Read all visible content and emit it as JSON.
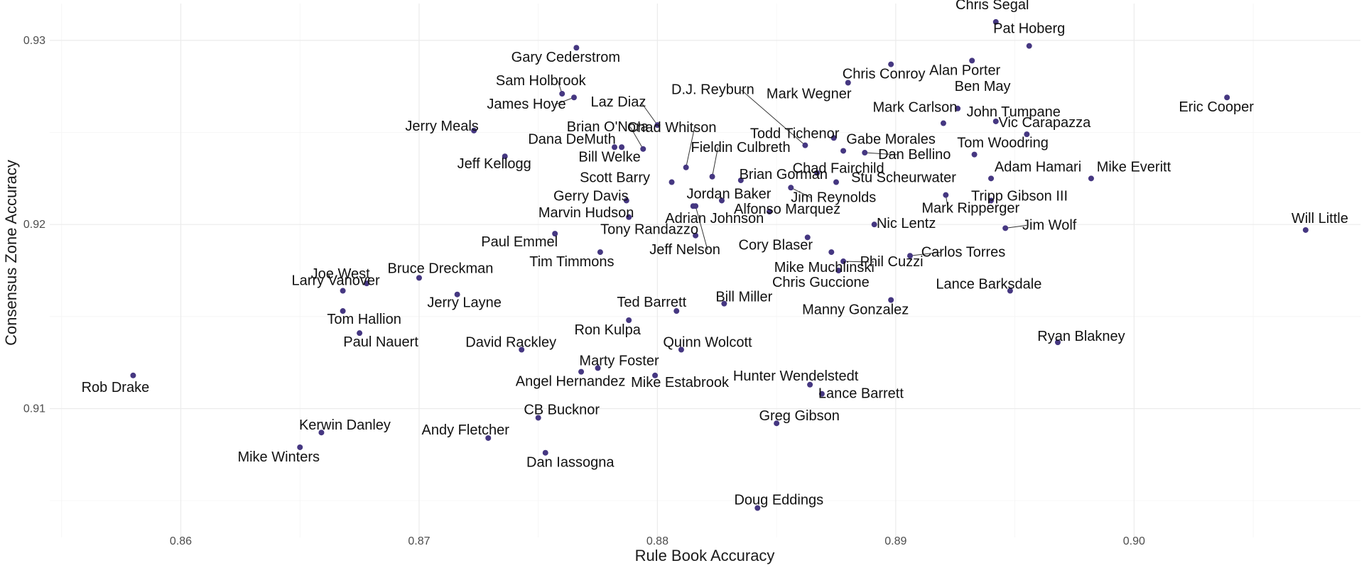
{
  "chart_data": {
    "type": "scatter",
    "title": "",
    "xlabel": "Rule Book Accuracy",
    "ylabel": "Consensus Zone Accuracy",
    "xlim": [
      0.8545,
      0.9095
    ],
    "ylim": [
      0.903,
      0.932
    ],
    "x_ticks": [
      0.86,
      0.87,
      0.88,
      0.89,
      0.9
    ],
    "x_tick_labels": [
      "0.86",
      "0.87",
      "0.88",
      "0.89",
      "0.90"
    ],
    "y_ticks": [
      0.91,
      0.92,
      0.93
    ],
    "y_tick_labels": [
      "0.91",
      "0.92",
      "0.93"
    ],
    "grid": true,
    "point_color": "#453781",
    "points": [
      {
        "name": "Chris Segal",
        "x": 0.8942,
        "y": 0.931
      },
      {
        "name": "Pat Hoberg",
        "x": 0.8956,
        "y": 0.9297
      },
      {
        "name": "Gary Cederstrom",
        "x": 0.8766,
        "y": 0.9296
      },
      {
        "name": "Alan Porter",
        "x": 0.8932,
        "y": 0.9289
      },
      {
        "name": "Chris Conroy",
        "x": 0.8898,
        "y": 0.9287
      },
      {
        "name": "Mark Wegner",
        "x": 0.888,
        "y": 0.9277
      },
      {
        "name": "Sam Holbrook",
        "x": 0.876,
        "y": 0.9271
      },
      {
        "name": "James Hoye",
        "x": 0.8765,
        "y": 0.9269
      },
      {
        "name": "Eric Cooper",
        "x": 0.9039,
        "y": 0.9269
      },
      {
        "name": "Laz Diaz",
        "x": 0.88,
        "y": 0.9254
      },
      {
        "name": "Ben May",
        "x": 0.8926,
        "y": 0.9263
      },
      {
        "name": "Mark Carlson",
        "x": 0.892,
        "y": 0.9255
      },
      {
        "name": "John Tumpane",
        "x": 0.8942,
        "y": 0.9256
      },
      {
        "name": "Jerry Meals",
        "x": 0.8723,
        "y": 0.9251
      },
      {
        "name": "Brian O'Nora",
        "x": 0.8794,
        "y": 0.9241
      },
      {
        "name": "D.J. Reyburn",
        "x": 0.8862,
        "y": 0.9243
      },
      {
        "name": "Todd Tichenor",
        "x": 0.8874,
        "y": 0.9247
      },
      {
        "name": "Vic Carapazza",
        "x": 0.8955,
        "y": 0.9249
      },
      {
        "name": "Dana DeMuth",
        "x": 0.8782,
        "y": 0.9242
      },
      {
        "name": "Chad Whitson",
        "x": 0.8812,
        "y": 0.9231
      },
      {
        "name": "Gabe Morales",
        "x": 0.8878,
        "y": 0.924
      },
      {
        "name": "Tom Woodring",
        "x": 0.8933,
        "y": 0.9238
      },
      {
        "name": "Jeff Kellogg",
        "x": 0.8736,
        "y": 0.9237
      },
      {
        "name": "Bill Welke",
        "x": 0.8785,
        "y": 0.9242
      },
      {
        "name": "Fieldin Culbreth",
        "x": 0.8823,
        "y": 0.9226
      },
      {
        "name": "Chad Fairchild",
        "x": 0.8867,
        "y": 0.9228
      },
      {
        "name": "Dan Bellino",
        "x": 0.8887,
        "y": 0.9239
      },
      {
        "name": "Brian Gorman",
        "x": 0.8835,
        "y": 0.9224
      },
      {
        "name": "Scott Barry",
        "x": 0.8806,
        "y": 0.9223
      },
      {
        "name": "Adam Hamari",
        "x": 0.894,
        "y": 0.9225
      },
      {
        "name": "Mike Everitt",
        "x": 0.8982,
        "y": 0.9225
      },
      {
        "name": "Stu Scheurwater",
        "x": 0.8875,
        "y": 0.9223
      },
      {
        "name": "Jordan Baker",
        "x": 0.8827,
        "y": 0.9213
      },
      {
        "name": "Jim Reynolds",
        "x": 0.8856,
        "y": 0.922
      },
      {
        "name": "Tripp Gibson III",
        "x": 0.894,
        "y": 0.9213
      },
      {
        "name": "Mark Ripperger",
        "x": 0.8921,
        "y": 0.9216
      },
      {
        "name": "Gerry Davis",
        "x": 0.8787,
        "y": 0.9213
      },
      {
        "name": "Adrian Johnson",
        "x": 0.8815,
        "y": 0.921
      },
      {
        "name": "Marvin Hudson",
        "x": 0.8788,
        "y": 0.9204
      },
      {
        "name": "Alfonso Marquez",
        "x": 0.8847,
        "y": 0.9207
      },
      {
        "name": "Nic Lentz",
        "x": 0.8891,
        "y": 0.92
      },
      {
        "name": "Jim Wolf",
        "x": 0.8946,
        "y": 0.9198
      },
      {
        "name": "Will Little",
        "x": 0.9072,
        "y": 0.9197
      },
      {
        "name": "Tony Randazzo",
        "x": 0.8816,
        "y": 0.9194
      },
      {
        "name": "Paul Emmel",
        "x": 0.8757,
        "y": 0.9195
      },
      {
        "name": "Cory Blaser",
        "x": 0.8863,
        "y": 0.9193
      },
      {
        "name": "Jeff Nelson",
        "x": 0.8816,
        "y": 0.921
      },
      {
        "name": "Tim Timmons",
        "x": 0.8776,
        "y": 0.9185
      },
      {
        "name": "Mike Muchlinski",
        "x": 0.8873,
        "y": 0.9185
      },
      {
        "name": "Carlos Torres",
        "x": 0.8906,
        "y": 0.9183
      },
      {
        "name": "Phil Cuzzi",
        "x": 0.8878,
        "y": 0.918
      },
      {
        "name": "Chris Guccione",
        "x": 0.8876,
        "y": 0.9175
      },
      {
        "name": "Bruce Dreckman",
        "x": 0.87,
        "y": 0.9171
      },
      {
        "name": "Joe West",
        "x": 0.8678,
        "y": 0.9168
      },
      {
        "name": "Lance Barksdale",
        "x": 0.8948,
        "y": 0.9164
      },
      {
        "name": "Larry Vanover",
        "x": 0.8668,
        "y": 0.9164
      },
      {
        "name": "Jerry Layne",
        "x": 0.8716,
        "y": 0.9162
      },
      {
        "name": "Bill Miller",
        "x": 0.8828,
        "y": 0.9157
      },
      {
        "name": "Manny Gonzalez",
        "x": 0.8898,
        "y": 0.9159
      },
      {
        "name": "Ted Barrett",
        "x": 0.8808,
        "y": 0.9153
      },
      {
        "name": "Tom Hallion",
        "x": 0.8668,
        "y": 0.9153
      },
      {
        "name": "Ron Kulpa",
        "x": 0.8788,
        "y": 0.9148
      },
      {
        "name": "Paul Nauert",
        "x": 0.8675,
        "y": 0.9141
      },
      {
        "name": "Ryan Blakney",
        "x": 0.8968,
        "y": 0.9136
      },
      {
        "name": "David Rackley",
        "x": 0.8743,
        "y": 0.9132
      },
      {
        "name": "Quinn Wolcott",
        "x": 0.881,
        "y": 0.9132
      },
      {
        "name": "Marty Foster",
        "x": 0.8775,
        "y": 0.9122
      },
      {
        "name": "Angel Hernandez",
        "x": 0.8768,
        "y": 0.912
      },
      {
        "name": "Mike Estabrook",
        "x": 0.8799,
        "y": 0.9118
      },
      {
        "name": "Rob Drake",
        "x": 0.858,
        "y": 0.9118
      },
      {
        "name": "Hunter Wendelstedt",
        "x": 0.8864,
        "y": 0.9113
      },
      {
        "name": "Lance Barrett",
        "x": 0.8869,
        "y": 0.9108
      },
      {
        "name": "CB Bucknor",
        "x": 0.875,
        "y": 0.9095
      },
      {
        "name": "Greg Gibson",
        "x": 0.885,
        "y": 0.9092
      },
      {
        "name": "Kerwin Danley",
        "x": 0.8659,
        "y": 0.9087
      },
      {
        "name": "Andy Fletcher",
        "x": 0.8729,
        "y": 0.9084
      },
      {
        "name": "Mike Winters",
        "x": 0.865,
        "y": 0.9079
      },
      {
        "name": "Dan Iassogna",
        "x": 0.8753,
        "y": 0.9076
      },
      {
        "name": "Doug Eddings",
        "x": 0.8842,
        "y": 0.9046
      }
    ]
  }
}
